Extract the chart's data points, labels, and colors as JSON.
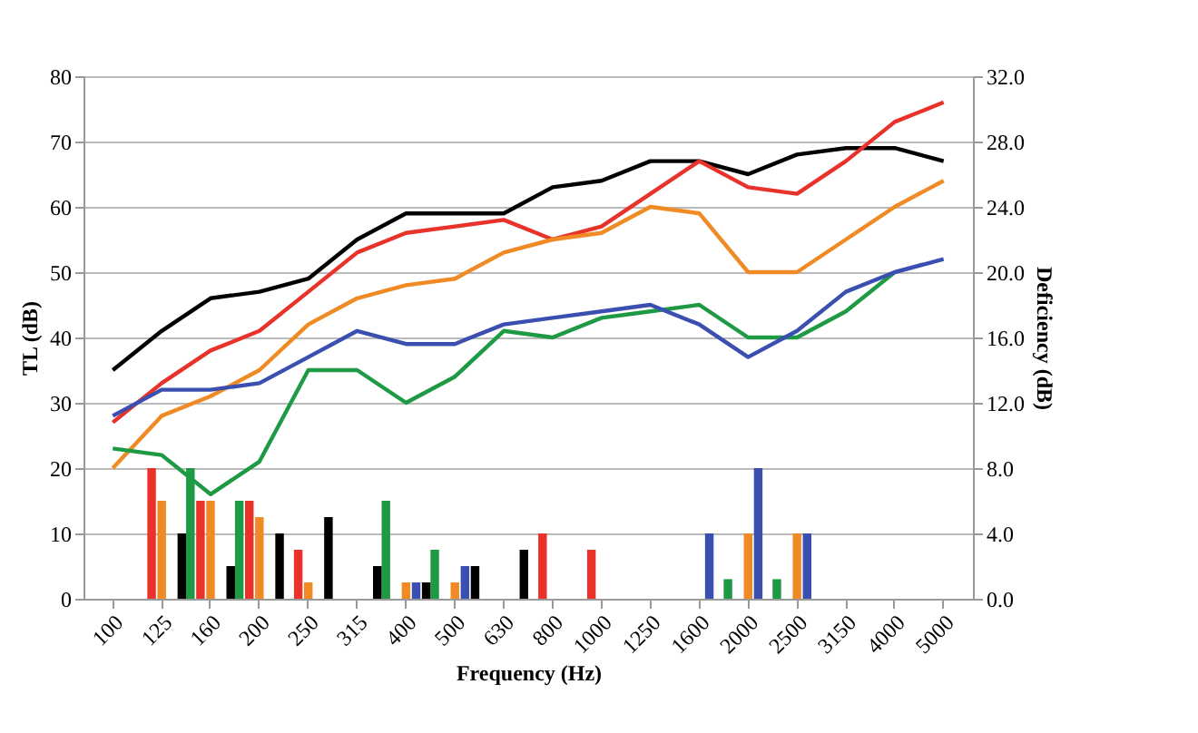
{
  "chart_data": {
    "type": "line",
    "xlabel": "Frequency (Hz)",
    "ylabel": "TL (dB)",
    "y2label": "Deficiency (dB)",
    "categories": [
      "100",
      "125",
      "160",
      "200",
      "250",
      "315",
      "400",
      "500",
      "630",
      "800",
      "1000",
      "1250",
      "1600",
      "2000",
      "2500",
      "3150",
      "4000",
      "5000"
    ],
    "series": [
      {
        "color": "#000000",
        "values": [
          35,
          41,
          46,
          47,
          49,
          55,
          59,
          59,
          59,
          63,
          64,
          67,
          67,
          65,
          68,
          69,
          69,
          67
        ]
      },
      {
        "color": "#e8322a",
        "values": [
          27,
          33,
          38,
          41,
          47,
          53,
          56,
          57,
          58,
          55,
          57,
          62,
          67,
          63,
          62,
          67,
          73,
          76
        ]
      },
      {
        "color": "#f08a24",
        "values": [
          20,
          28,
          31,
          35,
          42,
          46,
          48,
          49,
          53,
          55,
          56,
          60,
          59,
          50,
          50,
          55,
          60,
          64
        ]
      },
      {
        "color": "#1e9a45",
        "values": [
          23,
          22,
          16,
          21,
          35,
          35,
          30,
          34,
          41,
          40,
          43,
          44,
          45,
          40,
          40,
          44,
          50,
          null
        ]
      },
      {
        "color": "#3a4fb0",
        "values": [
          28,
          32,
          32,
          33,
          37,
          41,
          39,
          39,
          42,
          43,
          44,
          45,
          42,
          37,
          41,
          47,
          50,
          52
        ]
      },
      {
        "type": "bar",
        "axis": "y2",
        "color": "#1e9a45",
        "values": [
          null,
          null,
          8.0,
          6.0,
          null,
          null,
          6.0,
          3.0,
          null,
          null,
          null,
          null,
          null,
          1.2,
          1.2,
          null,
          null,
          null
        ]
      },
      {
        "type": "bar",
        "axis": "y2",
        "color": "#e8322a",
        "values": [
          null,
          8.0,
          6.0,
          6.0,
          3.0,
          null,
          null,
          null,
          null,
          4.0,
          3.0,
          null,
          null,
          null,
          null,
          null,
          null,
          null
        ]
      },
      {
        "type": "bar",
        "axis": "y2",
        "color": "#f08a24",
        "values": [
          null,
          6.0,
          6.0,
          5.0,
          1.0,
          null,
          1.0,
          1.0,
          null,
          null,
          null,
          null,
          null,
          4.0,
          4.0,
          null,
          null,
          null
        ]
      },
      {
        "type": "bar",
        "axis": "y2",
        "color": "#3a4fb0",
        "values": [
          null,
          null,
          null,
          null,
          null,
          null,
          1.0,
          2.0,
          null,
          null,
          null,
          null,
          4.0,
          8.0,
          4.0,
          null,
          null,
          null
        ]
      },
      {
        "type": "bar",
        "axis": "y2",
        "color": "#000000",
        "values": [
          null,
          4.0,
          2.0,
          4.0,
          5.0,
          2.0,
          1.0,
          2.0,
          3.0,
          null,
          null,
          null,
          null,
          null,
          null,
          null,
          null,
          null
        ]
      }
    ],
    "ylim": [
      0,
      80
    ],
    "yticks": [
      0,
      10,
      20,
      30,
      40,
      50,
      60,
      70,
      80
    ],
    "y2lim": [
      0,
      32
    ],
    "y2ticks": [
      {
        "value": 0,
        "label": "0.0"
      },
      {
        "value": 4,
        "label": "4.0"
      },
      {
        "value": 8,
        "label": "8.0"
      },
      {
        "value": 12,
        "label": "12.0"
      },
      {
        "value": 16,
        "label": "16.0"
      },
      {
        "value": 20,
        "label": "20.0"
      },
      {
        "value": 24,
        "label": "24.0"
      },
      {
        "value": 28,
        "label": "28.0"
      },
      {
        "value": 32,
        "label": "32.0"
      }
    ],
    "grid": "y",
    "legend": false,
    "marker": "none",
    "line_style": "solid"
  }
}
